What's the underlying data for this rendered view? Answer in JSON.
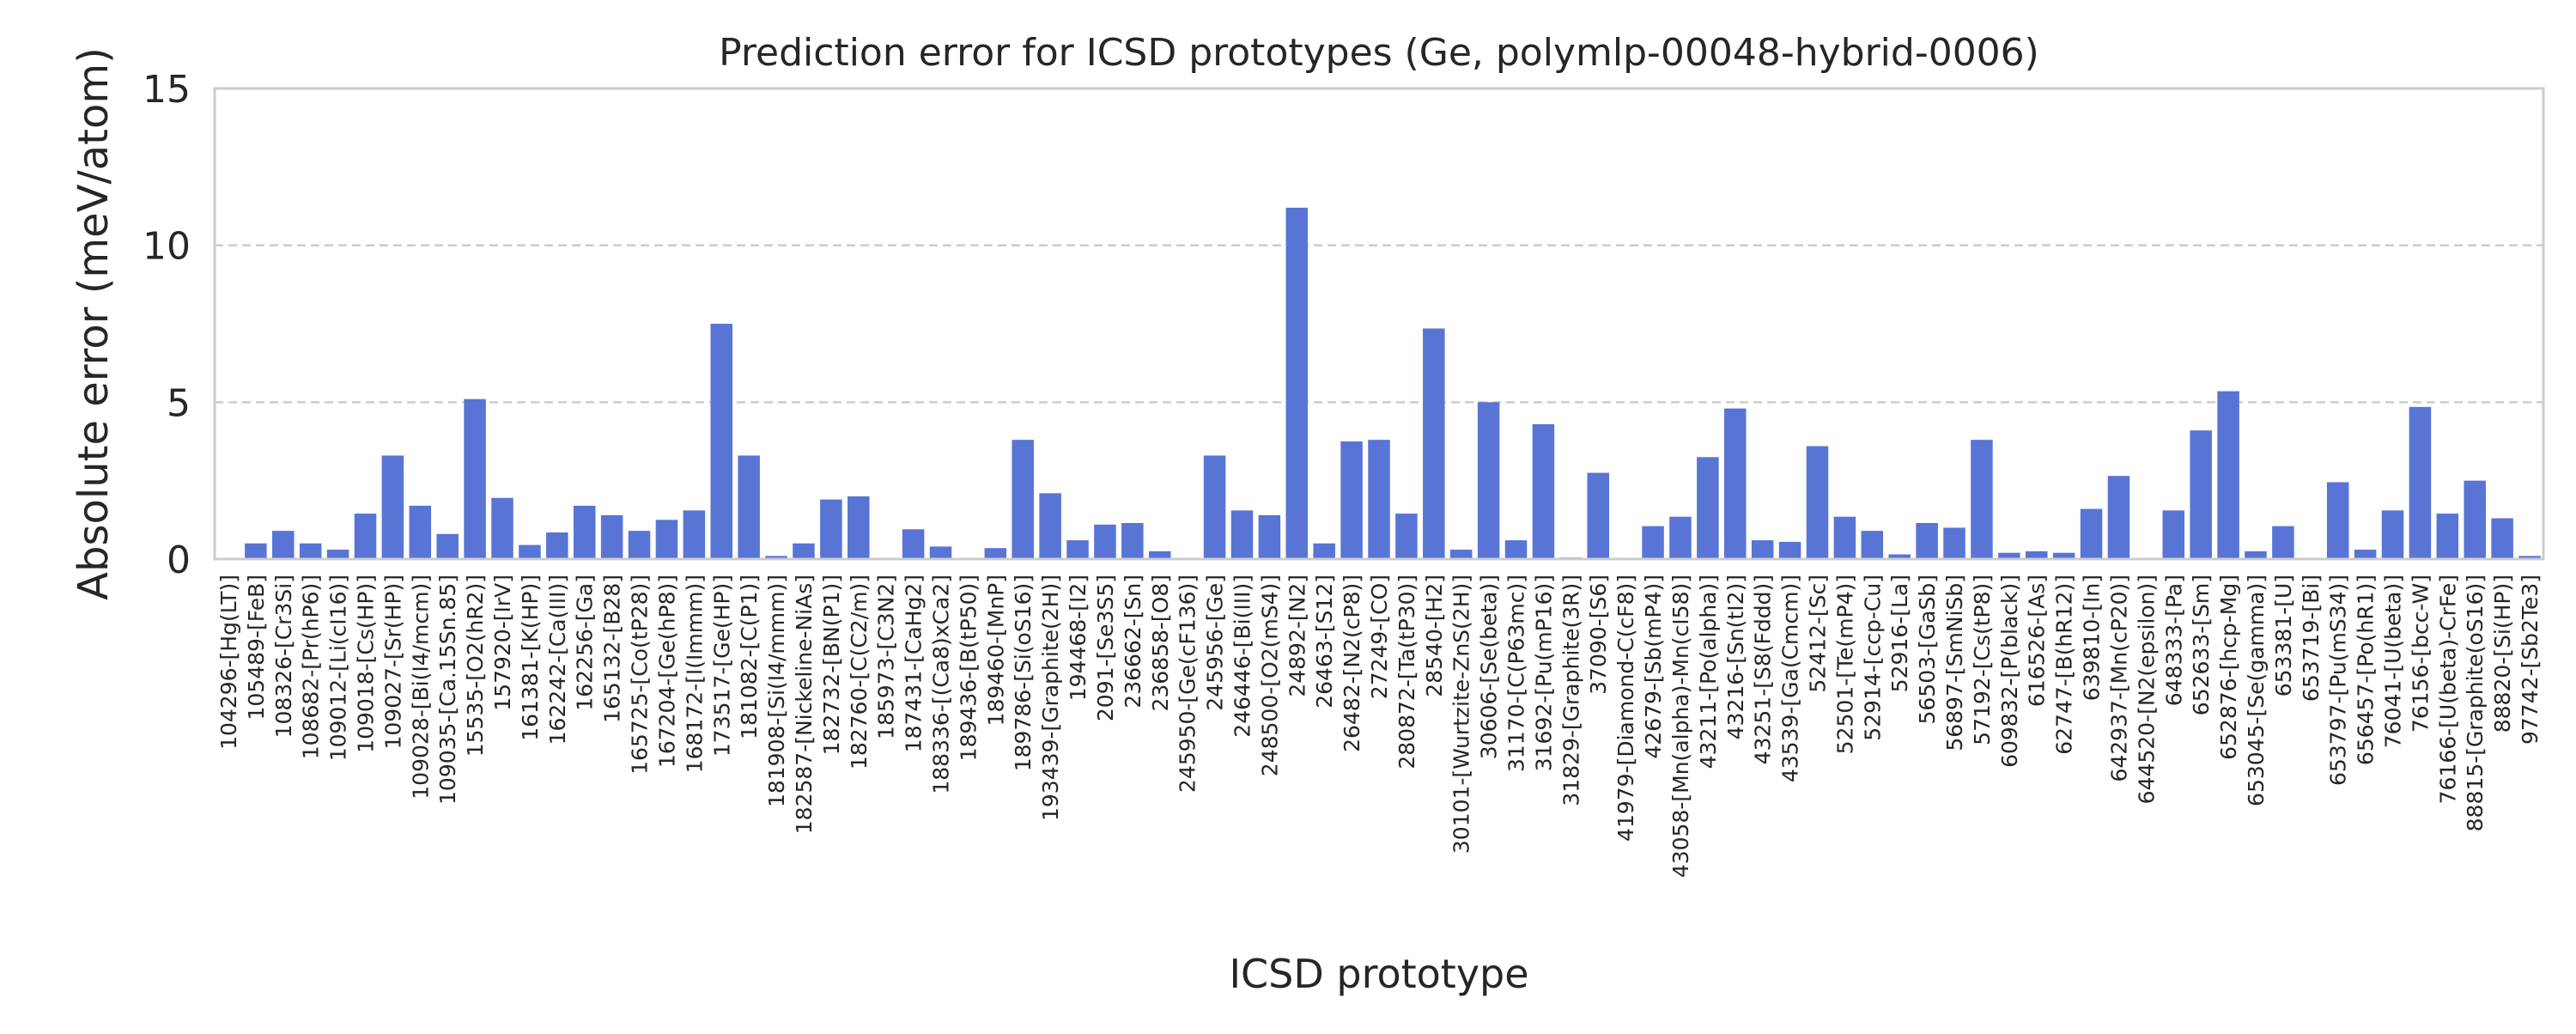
{
  "chart_data": {
    "type": "bar",
    "title": "Prediction error for ICSD prototypes (Ge, polymlp-00048-hybrid-0006)",
    "xlabel": "ICSD prototype",
    "ylabel": "Absolute error (meV/atom)",
    "ylim": [
      0,
      15
    ],
    "yticks": [
      0,
      5,
      10,
      15
    ],
    "grid": "y dashed",
    "bar_color": "#5875d6",
    "categories": [
      "104296-[Hg(LT)]",
      "105489-[FeB]",
      "108326-[Cr3Si]",
      "108682-[Pr(hP6)]",
      "109012-[Li(cI16)]",
      "109018-[Cs(HP)]",
      "109027-[Sr(HP)]",
      "109028-[Bi(I4/mcm)]",
      "109035-[Ca.15Sn.85]",
      "15535-[O2(hR2)]",
      "157920-[IrV]",
      "161381-[K(HP)]",
      "162242-[Ca(III)]",
      "162256-[Ga]",
      "165132-[B28]",
      "165725-[Co(tP28)]",
      "167204-[Ge(hP8)]",
      "168172-[I(Immm)]",
      "173517-[Ge(HP)]",
      "181082-[C(P1)]",
      "181908-[Si(I4/mmm)]",
      "182587-[Nickeline-NiAs]",
      "182732-[BN(P1)]",
      "182760-[C(C2/m)]",
      "185973-[C3N2]",
      "187431-[CaHg2]",
      "188336-[(Ca8)xCa2]",
      "189436-[B(tP50)]",
      "189460-[MnP]",
      "189786-[Si(oS16)]",
      "193439-[Graphite(2H)]",
      "194468-[I2]",
      "2091-[Se3S5]",
      "236662-[Sn]",
      "236858-[O8]",
      "245950-[Ge(cF136)]",
      "245956-[Ge]",
      "246446-[Bi(III)]",
      "248500-[O2(mS4)]",
      "24892-[N2]",
      "26463-[S12]",
      "26482-[N2(cP8)]",
      "27249-[CO]",
      "280872-[Ta(tP30)]",
      "28540-[H2]",
      "30101-[Wurtzite-ZnS(2H)]",
      "30606-[Se(beta)]",
      "31170-[C(P63mc)]",
      "31692-[Pu(mP16)]",
      "31829-[Graphite(3R)]",
      "37090-[S6]",
      "41979-[Diamond-C(cF8)]",
      "42679-[Sb(mP4)]",
      "43058-[Mn(alpha)-Mn(cI58)]",
      "43211-[Po(alpha)]",
      "43216-[Sn(tI2)]",
      "43251-[S8(Fddd)]",
      "43539-[Ga(Cmcm)]",
      "52412-[Sc]",
      "52501-[Te(mP4)]",
      "52914-[ccp-Cu]",
      "52916-[La]",
      "56503-[GaSb]",
      "56897-[SmNiSb]",
      "57192-[Cs(tP8)]",
      "609832-[P(black)]",
      "616526-[As]",
      "62747-[B(hR12)]",
      "639810-[In]",
      "642937-[Mn(cP20)]",
      "644520-[N2(epsilon)]",
      "648333-[Pa]",
      "652633-[Sm]",
      "652876-[hcp-Mg]",
      "653045-[Se(gamma)]",
      "653381-[U]",
      "653719-[Bi]",
      "653797-[Pu(mS34)]",
      "656457-[Po(hR1)]",
      "76041-[U(beta)]",
      "76156-[bcc-W]",
      "76166-[U(beta)-CrFe]",
      "88815-[Graphite(oS16)]",
      "88820-[Si(HP)]",
      "97742-[Sb2Te3]"
    ],
    "values": [
      0.0,
      0.5,
      0.9,
      0.5,
      0.3,
      1.45,
      3.3,
      1.7,
      0.8,
      5.1,
      1.95,
      0.45,
      0.85,
      1.7,
      1.4,
      0.9,
      1.25,
      1.55,
      7.5,
      3.3,
      0.1,
      0.5,
      1.9,
      2.0,
      0.0,
      0.95,
      0.4,
      0.0,
      0.35,
      3.8,
      2.1,
      0.6,
      1.1,
      1.15,
      0.25,
      0.0,
      3.3,
      1.55,
      1.4,
      11.2,
      0.5,
      3.75,
      3.8,
      1.45,
      7.35,
      0.3,
      5.0,
      0.6,
      4.3,
      0.05,
      2.75,
      0.0,
      1.05,
      1.35,
      3.25,
      4.8,
      0.6,
      0.55,
      3.6,
      1.35,
      0.9,
      0.15,
      1.15,
      1.0,
      3.8,
      0.2,
      0.25,
      0.2,
      1.6,
      2.65,
      0.0,
      1.55,
      4.1,
      5.35,
      0.25,
      1.05,
      0.0,
      2.45,
      0.3,
      1.55,
      4.85,
      1.45,
      2.5,
      1.3,
      0.1
    ]
  }
}
